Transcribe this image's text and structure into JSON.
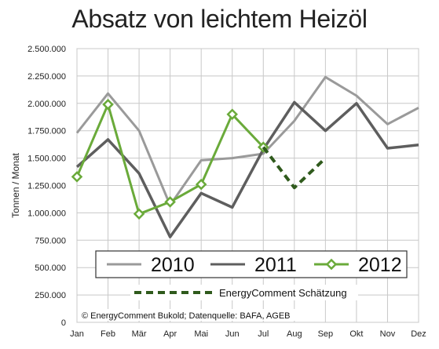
{
  "chart_data": {
    "type": "line",
    "title": "Absatz von leichtem Heizöl",
    "ylabel": "Tonnen / Monat",
    "xlabel": "",
    "ylim": [
      0,
      2500000
    ],
    "yticks": [
      0,
      250000,
      500000,
      750000,
      1000000,
      1250000,
      1500000,
      1750000,
      2000000,
      2250000,
      2500000
    ],
    "ytick_labels": [
      "0",
      "250.000",
      "500.000",
      "750.000",
      "1.000.000",
      "1.250.000",
      "1.500.000",
      "1.750.000",
      "2.000.000",
      "2.250.000",
      "2.500.000"
    ],
    "categories": [
      "Jan",
      "Feb",
      "Mär",
      "Apr",
      "Mai",
      "Jun",
      "Jul",
      "Aug",
      "Sep",
      "Okt",
      "Nov",
      "Dez"
    ],
    "grid": true,
    "series": [
      {
        "name": "2010",
        "color": "#9a9a9a",
        "values": [
          1730000,
          2090000,
          1750000,
          1070000,
          1480000,
          1500000,
          1540000,
          1840000,
          2240000,
          2070000,
          1810000,
          1960000
        ]
      },
      {
        "name": "2011",
        "color": "#5e5e5e",
        "values": [
          1420000,
          1670000,
          1360000,
          780000,
          1180000,
          1050000,
          1580000,
          2010000,
          1750000,
          2000000,
          1590000,
          1620000
        ]
      },
      {
        "name": "2012",
        "color": "#6aaa3a",
        "marker": "diamond",
        "values": [
          1330000,
          1990000,
          990000,
          1100000,
          1260000,
          1900000,
          1600000,
          null,
          null,
          null,
          null,
          null
        ]
      },
      {
        "name": "EnergyComment Schätzung",
        "color": "#2f5a1c",
        "dashed": true,
        "values": [
          null,
          null,
          null,
          null,
          null,
          null,
          1600000,
          1230000,
          1500000,
          null,
          null,
          null
        ]
      }
    ],
    "legend": {
      "placement": "bottom-inside",
      "main_entries": [
        "2010",
        "2011",
        "2012"
      ],
      "secondary_entry": "EnergyComment Schätzung"
    },
    "annotation": "© EnergyComment Bukold; Datenquelle: BAFA, AGEB"
  }
}
